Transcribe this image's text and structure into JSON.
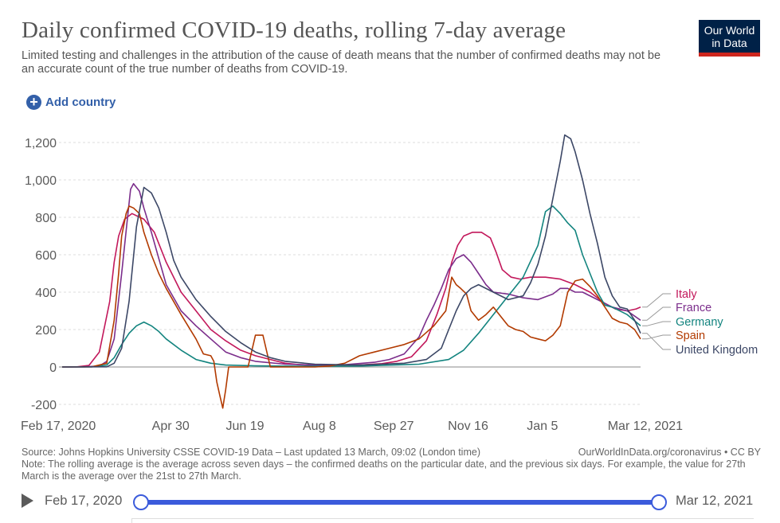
{
  "header": {
    "title": "Daily confirmed COVID-19 deaths, rolling 7-day average",
    "subtitle": "Limited testing and challenges in the attribution of the cause of death means that the number of confirmed deaths may not be an accurate count of the true number of deaths from COVID-19.",
    "logo_line1": "Our World",
    "logo_line2": "in Data",
    "add_country": "Add country"
  },
  "colors": {
    "Italy": "#c2185b",
    "France": "#7b2d8b",
    "Germany": "#13847f",
    "Spain": "#b23a00",
    "United Kingdom": "#3c4766",
    "accent": "#3b5bdb"
  },
  "chart_data": {
    "type": "line",
    "title": "Daily confirmed COVID-19 deaths, rolling 7-day average",
    "x_axis": {
      "start": "Feb 17, 2020",
      "end": "Mar 12, 2021",
      "tick_labels": [
        "Feb 17, 2020",
        "Apr 30",
        "Jun 19",
        "Aug 8",
        "Sep 27",
        "Nov 16",
        "Jan 5",
        "Mar 12, 2021"
      ],
      "tick_days": [
        0,
        73,
        123,
        173,
        223,
        273,
        323,
        389
      ]
    },
    "y_axis": {
      "ticks": [
        -200,
        0,
        200,
        400,
        600,
        800,
        1000,
        1200
      ],
      "tick_labels": [
        "-200",
        "0",
        "200",
        "400",
        "600",
        "800",
        "1,000",
        "1,200"
      ],
      "ylim": [
        -200,
        1250
      ]
    },
    "legend_placement": "right",
    "series": [
      {
        "name": "Italy",
        "days": [
          0,
          10,
          18,
          25,
          32,
          35,
          38,
          42,
          47,
          55,
          62,
          70,
          80,
          90,
          100,
          110,
          120,
          130,
          140,
          150,
          160,
          170,
          185,
          200,
          215,
          225,
          235,
          245,
          252,
          258,
          262,
          266,
          270,
          276,
          282,
          288,
          292,
          296,
          302,
          308,
          315,
          325,
          335,
          345,
          355,
          365,
          372,
          380,
          386,
          389
        ],
        "values": [
          0,
          1,
          8,
          80,
          350,
          560,
          700,
          790,
          820,
          790,
          720,
          560,
          400,
          300,
          200,
          140,
          90,
          60,
          40,
          20,
          12,
          8,
          6,
          10,
          18,
          30,
          55,
          140,
          280,
          420,
          560,
          650,
          700,
          720,
          720,
          690,
          610,
          520,
          480,
          470,
          480,
          480,
          470,
          440,
          400,
          340,
          310,
          300,
          310,
          320
        ]
      },
      {
        "name": "France",
        "days": [
          0,
          15,
          25,
          30,
          35,
          40,
          44,
          46,
          48,
          52,
          55,
          60,
          65,
          70,
          80,
          90,
          100,
          110,
          120,
          130,
          150,
          170,
          190,
          210,
          220,
          230,
          240,
          245,
          250,
          255,
          260,
          265,
          270,
          275,
          280,
          285,
          290,
          300,
          310,
          320,
          330,
          335,
          340,
          345,
          350,
          360,
          370,
          380,
          389
        ],
        "values": [
          0,
          1,
          5,
          30,
          150,
          500,
          800,
          950,
          980,
          940,
          850,
          720,
          580,
          440,
          300,
          220,
          150,
          80,
          50,
          30,
          15,
          10,
          12,
          25,
          40,
          70,
          160,
          250,
          330,
          420,
          520,
          580,
          600,
          560,
          500,
          440,
          400,
          390,
          370,
          360,
          390,
          420,
          420,
          400,
          400,
          360,
          320,
          300,
          250
        ]
      },
      {
        "name": "Germany",
        "days": [
          0,
          20,
          30,
          35,
          40,
          45,
          50,
          55,
          60,
          65,
          70,
          80,
          90,
          100,
          110,
          130,
          160,
          200,
          240,
          260,
          270,
          280,
          290,
          300,
          310,
          320,
          325,
          330,
          335,
          340,
          345,
          350,
          355,
          360,
          365,
          370,
          380,
          389
        ],
        "values": [
          0,
          1,
          10,
          50,
          120,
          180,
          220,
          240,
          220,
          190,
          150,
          90,
          40,
          20,
          10,
          6,
          4,
          5,
          15,
          40,
          90,
          180,
          280,
          380,
          480,
          650,
          830,
          860,
          820,
          770,
          730,
          600,
          500,
          400,
          330,
          320,
          280,
          220
        ]
      },
      {
        "name": "Spain",
        "days": [
          0,
          20,
          30,
          35,
          38,
          40,
          43,
          45,
          48,
          52,
          55,
          60,
          65,
          70,
          75,
          80,
          90,
          95,
          100,
          102,
          104,
          106,
          108,
          110,
          112,
          114,
          116,
          118,
          120,
          125,
          130,
          135,
          140,
          145,
          150,
          160,
          170,
          180,
          190,
          200,
          210,
          220,
          230,
          240,
          250,
          258,
          262,
          265,
          268,
          272,
          275,
          280,
          285,
          290,
          295,
          300,
          305,
          310,
          315,
          320,
          325,
          330,
          335,
          340,
          345,
          350,
          355,
          360,
          365,
          370,
          375,
          380,
          385,
          389
        ],
        "values": [
          0,
          1,
          20,
          250,
          500,
          700,
          820,
          860,
          850,
          820,
          720,
          600,
          500,
          420,
          350,
          280,
          150,
          70,
          60,
          30,
          -80,
          -150,
          -220,
          -120,
          0,
          0,
          0,
          0,
          0,
          0,
          170,
          170,
          0,
          0,
          0,
          0,
          0,
          5,
          20,
          60,
          80,
          100,
          120,
          150,
          220,
          300,
          480,
          440,
          420,
          390,
          300,
          250,
          280,
          320,
          270,
          220,
          200,
          190,
          160,
          150,
          140,
          170,
          220,
          400,
          460,
          470,
          430,
          380,
          320,
          260,
          240,
          230,
          200,
          150
        ]
      },
      {
        "name": "United Kingdom",
        "days": [
          0,
          30,
          35,
          40,
          45,
          50,
          55,
          60,
          65,
          70,
          75,
          80,
          90,
          100,
          110,
          120,
          130,
          140,
          150,
          170,
          200,
          230,
          245,
          255,
          260,
          265,
          270,
          275,
          280,
          290,
          300,
          310,
          315,
          320,
          325,
          330,
          335,
          338,
          342,
          345,
          350,
          355,
          360,
          365,
          370,
          375,
          380,
          385,
          389
        ],
        "values": [
          0,
          1,
          20,
          100,
          350,
          750,
          960,
          930,
          850,
          720,
          570,
          480,
          360,
          270,
          190,
          130,
          80,
          50,
          30,
          15,
          10,
          20,
          40,
          100,
          200,
          300,
          380,
          420,
          440,
          400,
          360,
          380,
          450,
          550,
          700,
          900,
          1100,
          1240,
          1220,
          1150,
          1000,
          820,
          660,
          480,
          380,
          320,
          310,
          250,
          180
        ]
      }
    ]
  },
  "footer": {
    "source": "Source: Johns Hopkins University CSSE COVID-19 Data – Last updated 13 March, 09:02 (London time)",
    "note": "Note: The rolling average is the average across seven days – the confirmed deaths on the particular date, and the previous six days. For example, the value for 27th March is the average over the 21st to 27th March.",
    "credit": "OurWorldInData.org/coronavirus • CC BY"
  },
  "timeline": {
    "start_label": "Feb 17, 2020",
    "end_label": "Mar 12, 2021",
    "start_fraction": 0,
    "end_fraction": 1
  }
}
